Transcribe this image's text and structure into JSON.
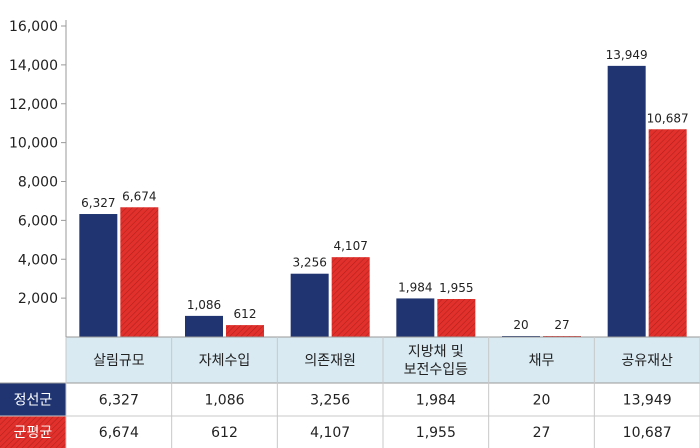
{
  "chart_data": {
    "type": "bar",
    "categories": [
      "살림규모",
      "자체수입",
      "의존재원",
      "지방채 및\n보전수입등",
      "채무",
      "공유재산"
    ],
    "series": [
      {
        "name": "정선군",
        "values": [
          6327,
          1086,
          3256,
          1984,
          20,
          13949
        ],
        "labels": [
          "6,327",
          "1,086",
          "3,256",
          "1,984",
          "20",
          "13,949"
        ],
        "color": "#1f3470"
      },
      {
        "name": "군평균",
        "values": [
          6674,
          612,
          4107,
          1955,
          27,
          10687
        ],
        "labels": [
          "6,674",
          "612",
          "4,107",
          "1,955",
          "27",
          "10,687"
        ],
        "color": "#e2312c"
      }
    ],
    "yticks": [
      "2,000",
      "4,000",
      "6,000",
      "8,000",
      "10,000",
      "12,000",
      "14,000",
      "16,000"
    ],
    "ylim": [
      0,
      16000
    ],
    "xlabel": "",
    "ylabel": "",
    "title": ""
  }
}
